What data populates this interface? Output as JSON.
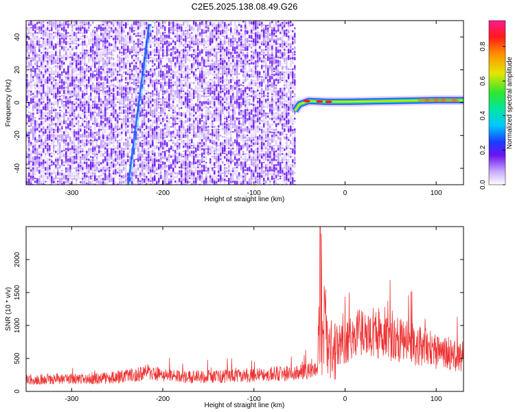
{
  "title": "C2E5.2025.138.08.49.G26",
  "colors": {
    "snr_line": "#ee3333",
    "noise_dark": "#6a14ee",
    "noise_light": "#b48cf5",
    "track": "#1a5cff"
  },
  "chart_data": [
    {
      "type": "heatmap",
      "title": "C2E5.2025.138.08.49.G26",
      "xlabel": "Height of straight line (km)",
      "ylabel": "Frequency (Hz)",
      "xlim": [
        -350,
        130
      ],
      "ylim": [
        -50,
        50
      ],
      "x_ticks": [
        -300,
        -200,
        -100,
        0,
        100
      ],
      "y_ticks": [
        -40,
        -20,
        0,
        20,
        40
      ],
      "colorbar": {
        "label": "Normalized spectral amplitude",
        "range": [
          0,
          0.95
        ],
        "ticks": [
          0.0,
          0.2,
          0.4,
          0.6,
          0.8
        ]
      },
      "noise_region_x": [
        -350,
        -55
      ],
      "signal_track": [
        {
          "x": -55,
          "y": -5
        },
        {
          "x": -50,
          "y": -1
        },
        {
          "x": -40,
          "y": 1
        },
        {
          "x": -20,
          "y": 0.5
        },
        {
          "x": 0,
          "y": 0.5
        },
        {
          "x": 50,
          "y": 1
        },
        {
          "x": 100,
          "y": 1.5
        },
        {
          "x": 130,
          "y": 1.5
        }
      ],
      "streak": [
        {
          "x": -238,
          "y": -50
        },
        {
          "x": -215,
          "y": 48
        }
      ],
      "grid": false
    },
    {
      "type": "line",
      "xlabel": "Height of straight line (km)",
      "ylabel": "SNR (10 * v/v)",
      "xlim": [
        -350,
        130
      ],
      "ylim": [
        0,
        2500
      ],
      "x_ticks": [
        -300,
        -200,
        -100,
        0,
        100
      ],
      "y_ticks": [
        0,
        500,
        1000,
        1500,
        2000
      ],
      "series": [
        {
          "x": [
            -350,
            -320,
            -290,
            -260,
            -230,
            -215,
            -200,
            -170,
            -140,
            -110,
            -80,
            -50,
            -40,
            -30,
            -27,
            -25,
            -22,
            -18,
            -12,
            -5,
            0,
            10,
            20,
            30,
            40,
            60,
            80,
            100,
            115,
            130
          ],
          "values": [
            180,
            190,
            185,
            200,
            250,
            300,
            240,
            220,
            230,
            240,
            260,
            280,
            300,
            450,
            2450,
            800,
            1250,
            700,
            750,
            700,
            780,
            830,
            880,
            900,
            870,
            780,
            700,
            610,
            560,
            480
          ]
        }
      ],
      "grid": false
    }
  ]
}
